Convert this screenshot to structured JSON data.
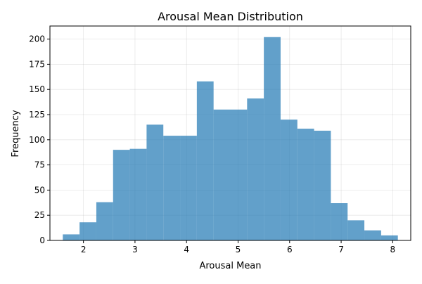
{
  "chart_data": {
    "type": "histogram",
    "title": "Arousal Mean Distribution",
    "xlabel": "Arousal Mean",
    "ylabel": "Frequency",
    "xlim": [
      1.35,
      8.35
    ],
    "ylim": [
      0,
      213
    ],
    "xticks": [
      2,
      3,
      4,
      5,
      6,
      7,
      8
    ],
    "yticks": [
      0,
      25,
      50,
      75,
      100,
      125,
      150,
      175,
      200
    ],
    "grid": true,
    "colors": {
      "bar": "#1f77b4",
      "bar_alpha": 0.7,
      "grid": "#b0b0b0"
    },
    "bins": [
      {
        "x0": 1.6,
        "x1": 1.925,
        "count": 6
      },
      {
        "x0": 1.925,
        "x1": 2.25,
        "count": 18
      },
      {
        "x0": 2.25,
        "x1": 2.575,
        "count": 38
      },
      {
        "x0": 2.575,
        "x1": 2.9,
        "count": 90
      },
      {
        "x0": 2.9,
        "x1": 3.225,
        "count": 91
      },
      {
        "x0": 3.225,
        "x1": 3.55,
        "count": 115
      },
      {
        "x0": 3.55,
        "x1": 3.875,
        "count": 104
      },
      {
        "x0": 3.875,
        "x1": 4.2,
        "count": 104
      },
      {
        "x0": 4.2,
        "x1": 4.525,
        "count": 158
      },
      {
        "x0": 4.525,
        "x1": 4.85,
        "count": 130
      },
      {
        "x0": 4.85,
        "x1": 5.175,
        "count": 130
      },
      {
        "x0": 5.175,
        "x1": 5.5,
        "count": 141
      },
      {
        "x0": 5.5,
        "x1": 5.825,
        "count": 202
      },
      {
        "x0": 5.825,
        "x1": 6.15,
        "count": 120
      },
      {
        "x0": 6.15,
        "x1": 6.475,
        "count": 111
      },
      {
        "x0": 6.475,
        "x1": 6.8,
        "count": 109
      },
      {
        "x0": 6.8,
        "x1": 7.125,
        "count": 37
      },
      {
        "x0": 7.125,
        "x1": 7.45,
        "count": 20
      },
      {
        "x0": 7.45,
        "x1": 7.775,
        "count": 10
      },
      {
        "x0": 7.775,
        "x1": 8.1,
        "count": 5
      }
    ]
  }
}
